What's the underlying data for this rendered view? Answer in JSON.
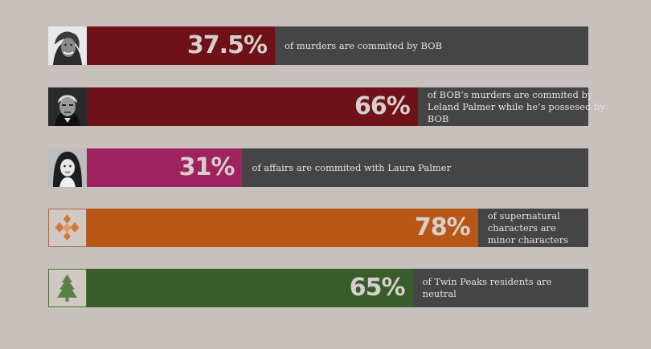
{
  "chart_data": {
    "type": "bar",
    "orientation": "horizontal",
    "xlim": [
      0,
      100
    ],
    "unit": "%",
    "rows": [
      {
        "value": 37.5,
        "label": "37.5%",
        "caption": "of murders are commited by BOB",
        "color": "#6e1119",
        "icon": "bob-portrait-icon"
      },
      {
        "value": 66,
        "label": "66%",
        "caption": "of BOB’s murders are commited by Leland Palmer while he’s possesed by BOB",
        "color": "#6e1119",
        "icon": "leland-portrait-icon"
      },
      {
        "value": 31,
        "label": "31%",
        "caption": "of affairs are commited with Laura Palmer",
        "color": "#a0235f",
        "icon": "laura-portrait-icon"
      },
      {
        "value": 78,
        "label": "78%",
        "caption": "of supernatural characters are minor characters",
        "color": "#b85616",
        "icon": "diamond-cluster-icon"
      },
      {
        "value": 65,
        "label": "65%",
        "caption": "of Twin Peaks residents are neutral",
        "color": "#385c2a",
        "icon": "pine-tree-icon"
      }
    ]
  }
}
